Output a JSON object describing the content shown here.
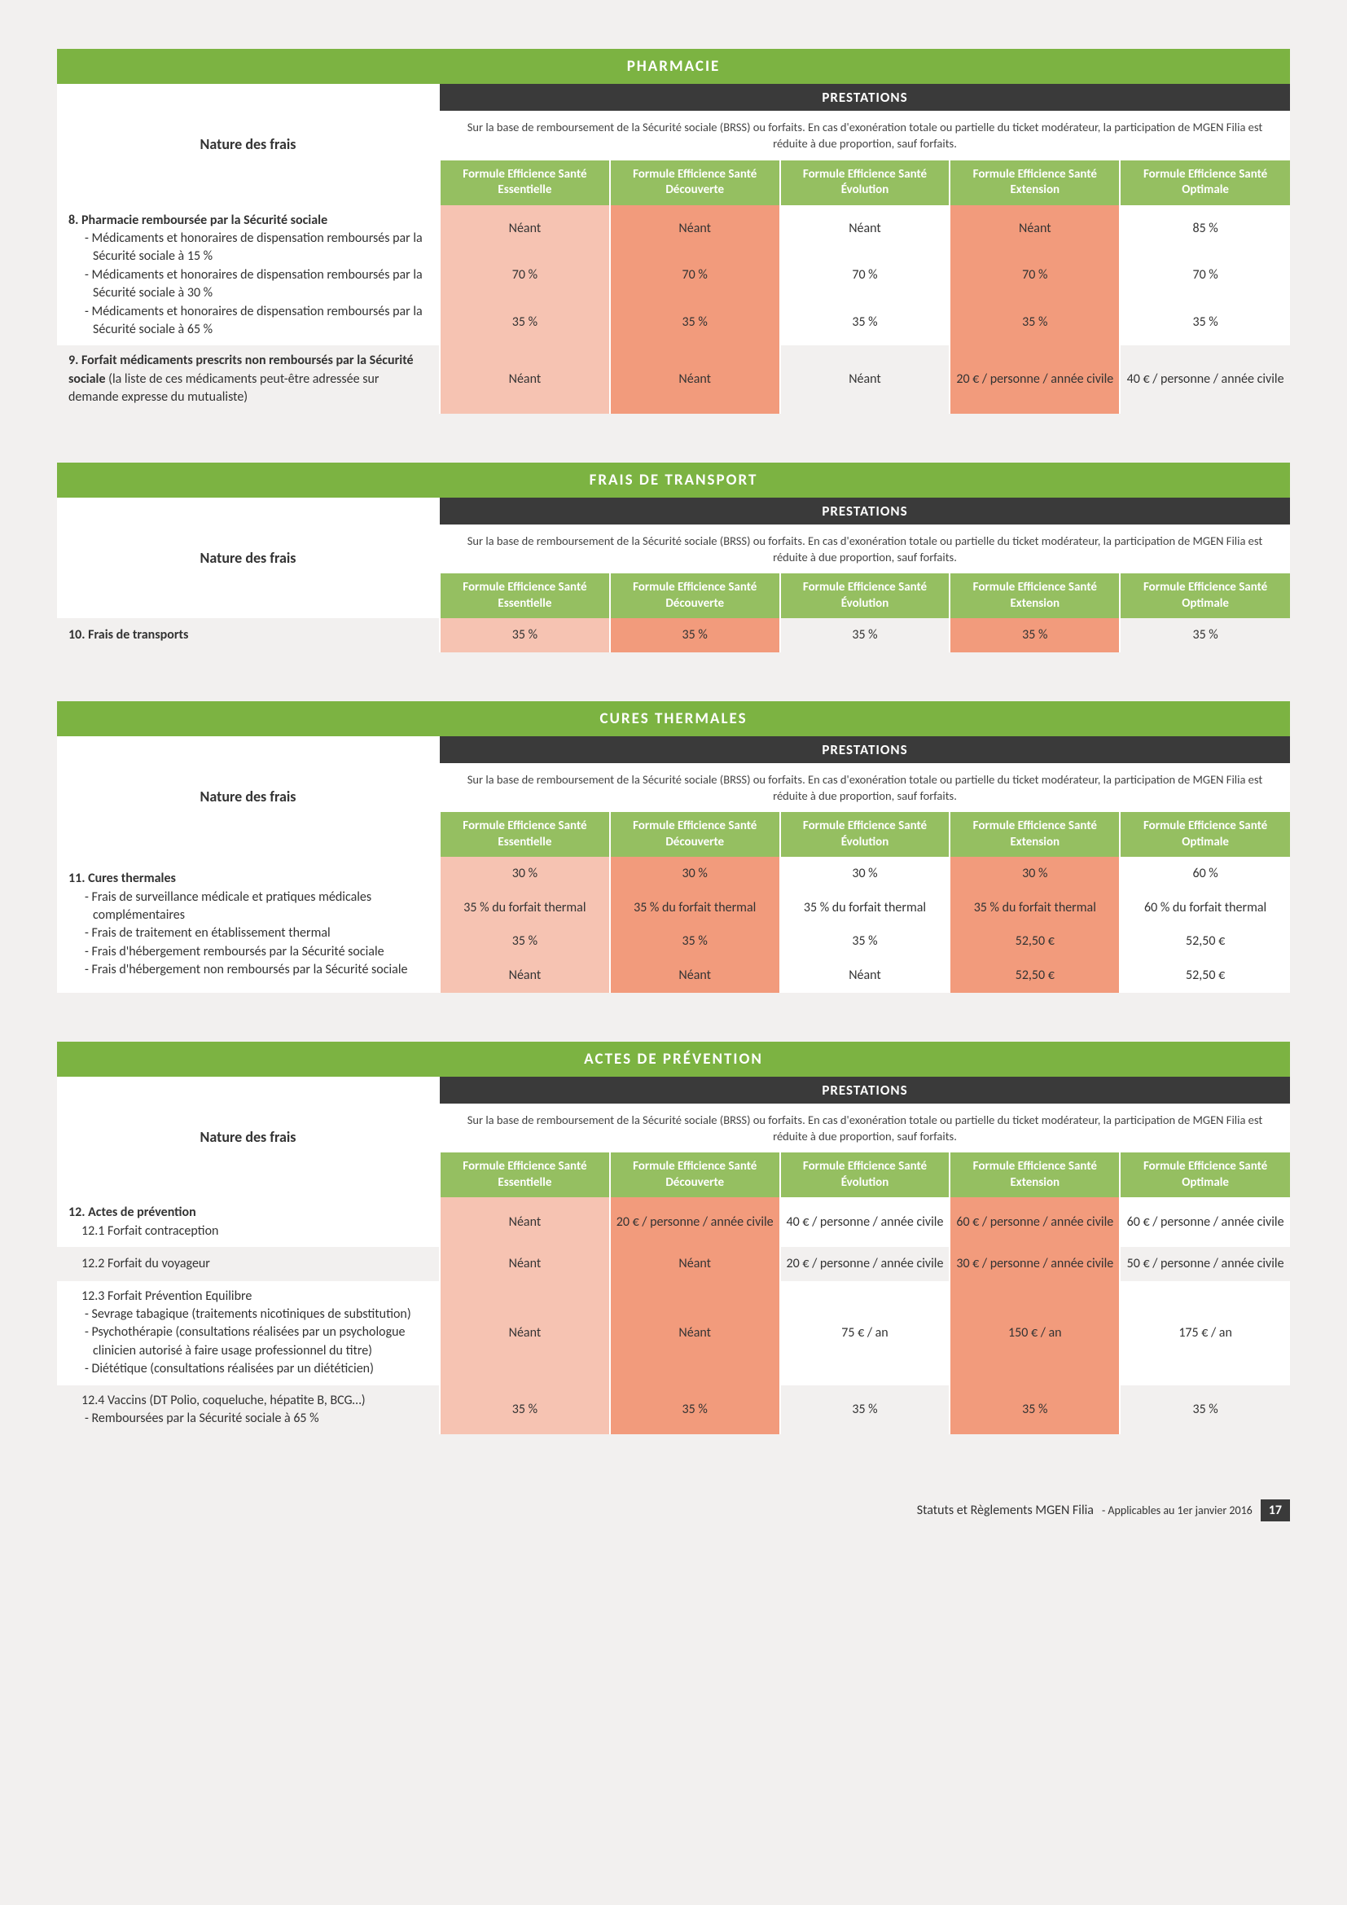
{
  "common": {
    "nature_label": "Nature des frais",
    "prestations_label": "PRESTATIONS",
    "note": "Sur la base de remboursement de la Sécurité sociale (BRSS) ou forfaits. En cas d'exonération totale ou partielle du ticket modérateur, la participation de MGEN Filia est réduite à due proportion, sauf forfaits.",
    "formulas": {
      "f1": "Formule Efficience Santé Essentielle",
      "f2": "Formule Efficience Santé Découverte",
      "f3": "Formule Efficience Santé Évolution",
      "f4": "Formule Efficience Santé Extension",
      "f5": "Formule Efficience Santé Optimale"
    }
  },
  "pharmacie": {
    "title": "PHARMACIE",
    "row8_title": "8. Pharmacie remboursée par la Sécurité sociale",
    "row8_a": "- Médicaments et honoraires de dispensation remboursés par la Sécurité sociale à 15 %",
    "row8_b": "- Médicaments et honoraires de dispensation remboursés par la Sécurité sociale à 30 %",
    "row8_c": "- Médicaments et honoraires de dispensation remboursés par la Sécurité sociale à 65 %",
    "r8a": {
      "v1": "Néant",
      "v2": "Néant",
      "v3": "Néant",
      "v4": "Néant",
      "v5": "85 %"
    },
    "r8b": {
      "v1": "70 %",
      "v2": "70 %",
      "v3": "70 %",
      "v4": "70 %",
      "v5": "70 %"
    },
    "r8c": {
      "v1": "35 %",
      "v2": "35 %",
      "v3": "35 %",
      "v4": "35 %",
      "v5": "35 %"
    },
    "row9": "9. Forfait médicaments prescrits non remboursés par la Sécurité sociale",
    "row9_sub": " (la liste de ces médicaments peut-être adressée sur demande expresse du mutualiste)",
    "r9": {
      "v1": "Néant",
      "v2": "Néant",
      "v3": "Néant",
      "v4": "20 € / personne / année civile",
      "v5": "40 € / personne / année civile"
    }
  },
  "transport": {
    "title": "FRAIS DE TRANSPORT",
    "row10": "10. Frais de transports",
    "r10": {
      "v1": "35 %",
      "v2": "35 %",
      "v3": "35 %",
      "v4": "35 %",
      "v5": "35 %"
    }
  },
  "cures": {
    "title": "CURES THERMALES",
    "row11_title": "11. Cures thermales",
    "row11_a": "- Frais de surveillance médicale et pratiques médicales complémentaires",
    "row11_b": "- Frais de traitement en établissement thermal",
    "row11_c": "- Frais d'hébergement remboursés par la Sécurité sociale",
    "row11_d": "- Frais d'hébergement non remboursés par la Sécurité sociale",
    "r11a": {
      "v1": "30 %",
      "v2": "30 %",
      "v3": "30 %",
      "v4": "30 %",
      "v5": "60 %"
    },
    "r11b": {
      "v1": "35 % du forfait thermal",
      "v2": "35 % du forfait thermal",
      "v3": "35 % du forfait thermal",
      "v4": "35 % du forfait thermal",
      "v5": "60 % du forfait thermal"
    },
    "r11c": {
      "v1": "35 %",
      "v2": "35 %",
      "v3": "35 %",
      "v4": "52,50 €",
      "v5": "52,50 €"
    },
    "r11d": {
      "v1": "Néant",
      "v2": "Néant",
      "v3": "Néant",
      "v4": "52,50 €",
      "v5": "52,50 €"
    }
  },
  "prevention": {
    "title": "ACTES DE PRÉVENTION",
    "row12_title": "12. Actes de prévention",
    "row12_1": "12.1 Forfait contraception",
    "r12_1": {
      "v1": "Néant",
      "v2": "20 € / personne / année civile",
      "v3": "40 € / personne / année civile",
      "v4": "60 € / personne / année civile",
      "v5": "60 € / personne / année civile"
    },
    "row12_2": "12.2 Forfait du voyageur",
    "r12_2": {
      "v1": "Néant",
      "v2": "Néant",
      "v3": "20 € / personne / année civile",
      "v4": "30 € / personne / année civile",
      "v5": "50 € / personne / année civile"
    },
    "row12_3": "12.3 Forfait Prévention Equilibre",
    "row12_3a": "- Sevrage tabagique (traitements nicotiniques de substitution)",
    "row12_3b": "- Psychothérapie (consultations réalisées par un psychologue clinicien autorisé à faire usage professionnel du titre)",
    "row12_3c": "- Diététique (consultations réalisées par un diététicien)",
    "r12_3": {
      "v1": "Néant",
      "v2": "Néant",
      "v3": "75 € / an",
      "v4": "150 € / an",
      "v5": "175 € / an"
    },
    "row12_4": "12.4 Vaccins (DT Polio, coqueluche, hépatite B, BCG…)",
    "row12_4a": "- Remboursées par la Sécurité sociale à 65 %",
    "r12_4": {
      "v1": "35 %",
      "v2": "35 %",
      "v3": "35 %",
      "v4": "35 %",
      "v5": "35 %"
    }
  },
  "footer": {
    "main": "Statuts et Règlements MGEN Filia",
    "sub": " - Applicables au 1er janvier 2016",
    "page": "17"
  }
}
